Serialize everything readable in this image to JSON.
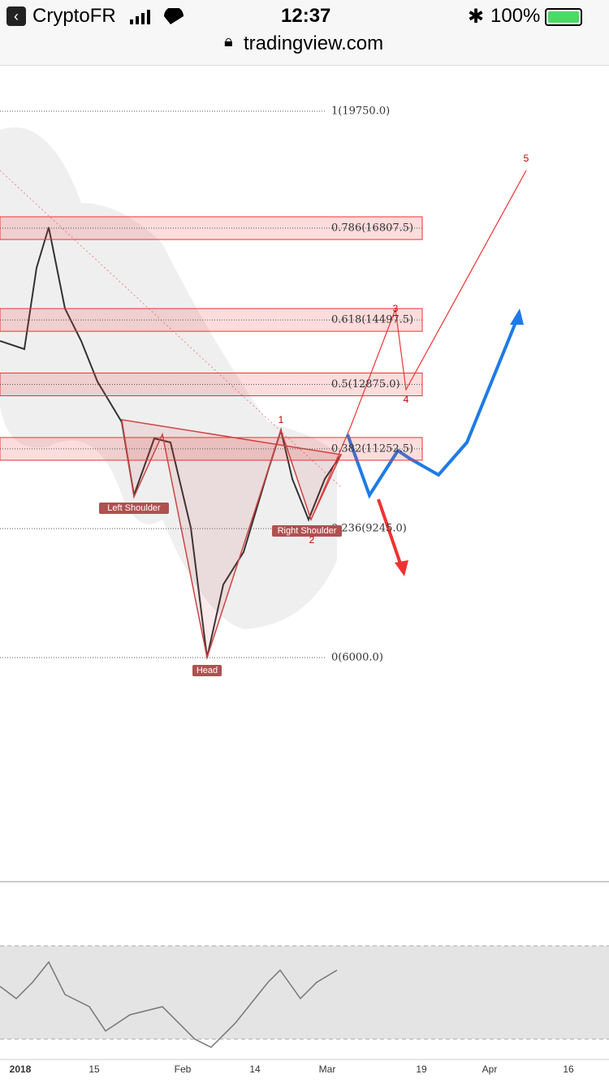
{
  "status_bar": {
    "carrier": "CryptoFR",
    "time": "12:37",
    "battery": "100%"
  },
  "address_bar": {
    "url": "tradingview.com"
  },
  "chart": {
    "fib_levels": [
      {
        "label": "1(19750.0)",
        "price": 19750,
        "zone": false
      },
      {
        "label": "0.786(16807.5)",
        "price": 16807.5,
        "zone": true
      },
      {
        "label": "0.618(14497.5)",
        "price": 14497.5,
        "zone": true
      },
      {
        "label": "0.5(12875.0)",
        "price": 12875,
        "zone": true
      },
      {
        "label": "0.382(11252.5)",
        "price": 11252.5,
        "zone": true
      },
      {
        "label": "0.236(9245.0)",
        "price": 9245,
        "zone": false
      },
      {
        "label": "0(6000.0)",
        "price": 6000,
        "zone": false
      }
    ],
    "pattern_labels": [
      "Left Shoulder",
      "Head",
      "Right Shoulder"
    ],
    "wave_labels": [
      "1",
      "2",
      "3",
      "4",
      "5"
    ],
    "x_labels": [
      "2018",
      "15",
      "Feb",
      "14",
      "Mar",
      "19",
      "Apr",
      "16"
    ]
  }
}
